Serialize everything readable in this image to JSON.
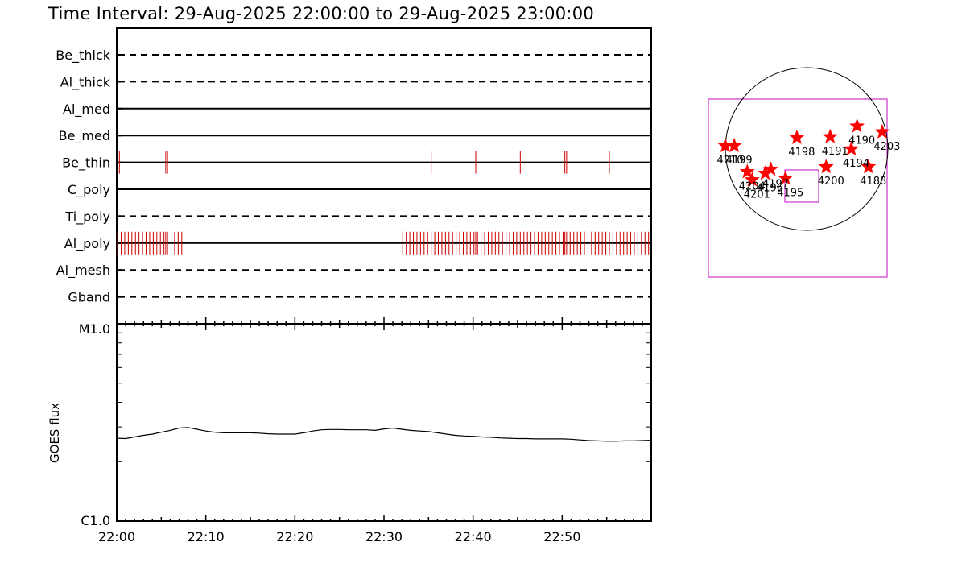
{
  "title": "Time Interval: 29-Aug-2025 22:00:00 to 29-Aug-2025 23:00:00",
  "colors": {
    "axis": "#000000",
    "event": "#cc0000",
    "star": "#ff0000",
    "box": "#cc33cc"
  },
  "filter_panel": {
    "rows": [
      {
        "name": "Be_thick",
        "style": "dashed",
        "events": []
      },
      {
        "name": "Al_thick",
        "style": "dashed",
        "events": []
      },
      {
        "name": "Al_med",
        "style": "solid",
        "events": []
      },
      {
        "name": "Be_med",
        "style": "solid",
        "events": []
      },
      {
        "name": "Be_thin",
        "style": "solid",
        "events": [
          0.3,
          5.5,
          5.7,
          35.3,
          40.3,
          45.3,
          50.3,
          50.5,
          55.3
        ]
      },
      {
        "name": "C_poly",
        "style": "solid",
        "events": []
      },
      {
        "name": "Ti_poly",
        "style": "dashed",
        "events": []
      },
      {
        "name": "Al_poly",
        "style": "solid",
        "events": [
          0.1,
          0.5,
          0.9,
          1.3,
          1.7,
          2.1,
          2.5,
          2.9,
          3.3,
          3.7,
          4.1,
          4.5,
          4.9,
          5.3,
          5.5,
          5.7,
          6.1,
          6.5,
          6.9,
          7.3,
          32.1,
          32.5,
          32.9,
          33.3,
          33.7,
          34.1,
          34.5,
          34.9,
          35.3,
          35.7,
          36.1,
          36.5,
          36.9,
          37.3,
          37.7,
          38.1,
          38.5,
          38.9,
          39.3,
          39.7,
          40.1,
          40.3,
          40.5,
          40.9,
          41.3,
          41.7,
          42.1,
          42.5,
          42.9,
          43.3,
          43.7,
          44.1,
          44.5,
          44.9,
          45.3,
          45.7,
          46.1,
          46.5,
          46.9,
          47.3,
          47.7,
          48.1,
          48.5,
          48.9,
          49.3,
          49.7,
          50.1,
          50.3,
          50.5,
          50.9,
          51.3,
          51.7,
          52.1,
          52.5,
          52.9,
          53.3,
          53.7,
          54.1,
          54.5,
          54.9,
          55.3,
          55.7,
          56.1,
          56.5,
          56.9,
          57.3,
          57.7,
          58.1,
          58.5,
          58.9,
          59.3,
          59.7
        ]
      },
      {
        "name": "Al_mesh",
        "style": "dashed",
        "events": []
      },
      {
        "name": "Gband",
        "style": "dashed",
        "events": []
      }
    ]
  },
  "chart_data": {
    "type": "line",
    "ylabel": "GOES flux",
    "y_top_label": "M1.0",
    "y_bottom_label": "C1.0",
    "y_scale": "log",
    "ylim": [
      1e-06,
      1e-05
    ],
    "x_tick_labels": [
      "22:00",
      "22:10",
      "22:20",
      "22:30",
      "22:40",
      "22:50"
    ],
    "x_minutes": [
      0,
      1,
      2,
      3,
      4,
      5,
      6,
      7,
      8,
      9,
      10,
      11,
      12,
      13,
      14,
      15,
      16,
      17,
      18,
      19,
      20,
      21,
      22,
      23,
      24,
      25,
      26,
      27,
      28,
      29,
      30,
      31,
      32,
      33,
      34,
      35,
      36,
      37,
      38,
      39,
      40,
      41,
      42,
      43,
      44,
      45,
      46,
      47,
      48,
      49,
      50,
      51,
      52,
      53,
      54,
      55,
      56,
      57,
      58,
      59,
      60
    ],
    "flux": [
      2.63e-06,
      2.62e-06,
      2.67e-06,
      2.72e-06,
      2.76e-06,
      2.82e-06,
      2.88e-06,
      2.96e-06,
      2.98e-06,
      2.92e-06,
      2.86e-06,
      2.82e-06,
      2.8e-06,
      2.8e-06,
      2.8e-06,
      2.8e-06,
      2.79e-06,
      2.77e-06,
      2.76e-06,
      2.76e-06,
      2.76e-06,
      2.8e-06,
      2.86e-06,
      2.9e-06,
      2.91e-06,
      2.91e-06,
      2.9e-06,
      2.9e-06,
      2.9e-06,
      2.88e-06,
      2.93e-06,
      2.96e-06,
      2.92e-06,
      2.88e-06,
      2.86e-06,
      2.84e-06,
      2.8e-06,
      2.76e-06,
      2.72e-06,
      2.7e-06,
      2.69e-06,
      2.67e-06,
      2.66e-06,
      2.64e-06,
      2.63e-06,
      2.62e-06,
      2.62e-06,
      2.61e-06,
      2.61e-06,
      2.61e-06,
      2.61e-06,
      2.6e-06,
      2.58e-06,
      2.56e-06,
      2.55e-06,
      2.54e-06,
      2.54e-06,
      2.55e-06,
      2.55e-06,
      2.56e-06,
      2.57e-06
    ]
  },
  "active_regions": [
    {
      "label": "4188",
      "lon": 0.76,
      "lat": -0.22
    },
    {
      "label": "4190",
      "lon": 0.62,
      "lat": 0.28
    },
    {
      "label": "4191",
      "lon": 0.29,
      "lat": 0.15
    },
    {
      "label": "4194",
      "lon": 0.55,
      "lat": 0.0
    },
    {
      "label": "4195",
      "lon": -0.26,
      "lat": -0.36
    },
    {
      "label": "4196",
      "lon": -0.51,
      "lat": -0.3
    },
    {
      "label": "4197",
      "lon": -0.44,
      "lat": -0.25
    },
    {
      "label": "4198",
      "lon": -0.12,
      "lat": 0.14
    },
    {
      "label": "4199",
      "lon": -0.89,
      "lat": 0.04
    },
    {
      "label": "4200",
      "lon": 0.24,
      "lat": -0.22
    },
    {
      "label": "4201",
      "lon": -0.67,
      "lat": -0.38
    },
    {
      "label": "4203",
      "lon": 0.93,
      "lat": 0.21
    },
    {
      "label": "4204",
      "lon": -0.73,
      "lat": -0.28
    },
    {
      "label": "4210",
      "lon": -1.0,
      "lat": 0.04
    }
  ]
}
